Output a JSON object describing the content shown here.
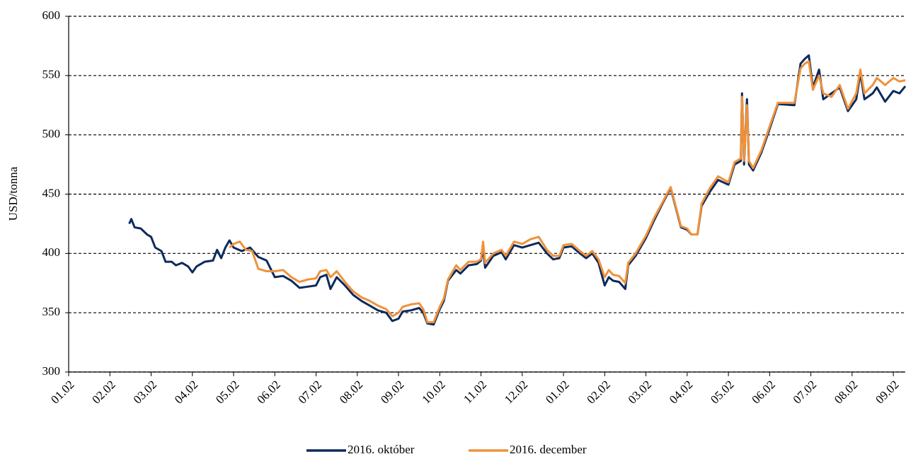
{
  "chart_data": {
    "type": "line",
    "y_label": "USD/tonna",
    "xlim": [
      0,
      20.29
    ],
    "xticks": [
      {
        "value": 0,
        "label": "01.02"
      },
      {
        "value": 1,
        "label": "02.02"
      },
      {
        "value": 2,
        "label": "03.02"
      },
      {
        "value": 3,
        "label": "04.02"
      },
      {
        "value": 4,
        "label": "05.02"
      },
      {
        "value": 5,
        "label": "06.02"
      },
      {
        "value": 6,
        "label": "07.02"
      },
      {
        "value": 7,
        "label": "08.02"
      },
      {
        "value": 8,
        "label": "09.02"
      },
      {
        "value": 9,
        "label": "10.02"
      },
      {
        "value": 10,
        "label": "11.02"
      },
      {
        "value": 11,
        "label": "12.02"
      },
      {
        "value": 12,
        "label": "01.02"
      },
      {
        "value": 13,
        "label": "02.02"
      },
      {
        "value": 14,
        "label": "03.02"
      },
      {
        "value": 15,
        "label": "04.02"
      },
      {
        "value": 16,
        "label": "05.02"
      },
      {
        "value": 17,
        "label": "06.02"
      },
      {
        "value": 18,
        "label": "07.02"
      },
      {
        "value": 19,
        "label": "08.02"
      },
      {
        "value": 20,
        "label": "09.02"
      }
    ],
    "ylim": [
      300,
      600
    ],
    "yticks": [
      300,
      350,
      400,
      450,
      500,
      550,
      600
    ],
    "grid": true,
    "legend": "bottom",
    "series": [
      {
        "name": "2016. október",
        "color": "#0d2a5c",
        "x": [
          1.47,
          1.52,
          1.6,
          1.75,
          1.9,
          2.0,
          2.1,
          2.25,
          2.35,
          2.5,
          2.6,
          2.75,
          2.9,
          3.0,
          3.1,
          3.3,
          3.5,
          3.6,
          3.7,
          3.8,
          3.9,
          4.0,
          4.2,
          4.4,
          4.6,
          4.8,
          5.0,
          5.2,
          5.4,
          5.6,
          5.8,
          6.0,
          6.1,
          6.25,
          6.35,
          6.5,
          6.7,
          6.9,
          7.1,
          7.3,
          7.5,
          7.7,
          7.85,
          8.0,
          8.1,
          8.3,
          8.5,
          8.6,
          8.7,
          8.85,
          9.0,
          9.1,
          9.2,
          9.4,
          9.5,
          9.7,
          9.9,
          10.0,
          10.05,
          10.1,
          10.3,
          10.5,
          10.6,
          10.8,
          11.0,
          11.2,
          11.4,
          11.6,
          11.75,
          11.9,
          12.0,
          12.2,
          12.4,
          12.55,
          12.7,
          12.85,
          13.0,
          13.1,
          13.2,
          13.35,
          13.5,
          13.57,
          13.75,
          14.0,
          14.2,
          14.4,
          14.6,
          14.85,
          15.0,
          15.1,
          15.25,
          15.35,
          15.55,
          15.75,
          16.0,
          16.15,
          16.3,
          16.33,
          16.38,
          16.45,
          16.5,
          16.6,
          16.8,
          17.0,
          17.2,
          17.6,
          17.75,
          17.85,
          17.95,
          18.05,
          18.2,
          18.3,
          18.5,
          18.7,
          18.9,
          19.1,
          19.2,
          19.3,
          19.5,
          19.6,
          19.8,
          20.0,
          20.15,
          20.29
        ],
        "values": [
          425,
          429,
          422,
          421,
          416,
          414,
          405,
          402,
          393,
          393,
          390,
          392,
          389,
          384,
          389,
          393,
          394,
          403,
          396,
          405,
          411,
          405,
          402,
          405,
          397,
          394,
          380,
          381,
          377,
          371,
          372,
          373,
          380,
          382,
          370,
          380,
          373,
          365,
          360,
          356,
          352,
          350,
          343,
          345,
          351,
          352,
          354,
          350,
          341,
          340,
          353,
          360,
          377,
          386,
          383,
          390,
          391,
          394,
          404,
          388,
          398,
          401,
          395,
          407,
          405,
          407,
          409,
          400,
          395,
          396,
          405,
          406,
          400,
          396,
          400,
          392,
          373,
          380,
          377,
          376,
          370,
          390,
          398,
          413,
          428,
          442,
          455,
          422,
          420,
          416,
          416,
          440,
          452,
          462,
          458,
          475,
          478,
          535,
          475,
          530,
          475,
          470,
          485,
          505,
          526,
          525,
          560,
          564,
          567,
          540,
          555,
          530,
          535,
          540,
          520,
          530,
          552,
          530,
          535,
          540,
          528,
          537,
          535,
          541
        ]
      },
      {
        "name": "2016. december",
        "color": "#f0913a",
        "x": [
          3.9,
          4.0,
          4.15,
          4.3,
          4.45,
          4.6,
          4.8,
          5.0,
          5.2,
          5.4,
          5.6,
          5.8,
          6.0,
          6.1,
          6.25,
          6.35,
          6.5,
          6.7,
          6.9,
          7.1,
          7.3,
          7.5,
          7.7,
          7.85,
          8.0,
          8.1,
          8.3,
          8.5,
          8.6,
          8.7,
          8.85,
          9.0,
          9.1,
          9.2,
          9.4,
          9.5,
          9.7,
          9.9,
          10.0,
          10.05,
          10.1,
          10.3,
          10.5,
          10.6,
          10.8,
          11.0,
          11.2,
          11.4,
          11.6,
          11.75,
          11.9,
          12.0,
          12.2,
          12.4,
          12.55,
          12.7,
          12.85,
          13.0,
          13.1,
          13.2,
          13.35,
          13.5,
          13.57,
          13.75,
          14.0,
          14.2,
          14.4,
          14.6,
          14.85,
          15.0,
          15.1,
          15.25,
          15.35,
          15.55,
          15.75,
          16.0,
          16.15,
          16.3,
          16.33,
          16.38,
          16.45,
          16.5,
          16.6,
          16.8,
          17.0,
          17.2,
          17.6,
          17.75,
          17.85,
          17.95,
          18.05,
          18.2,
          18.3,
          18.5,
          18.7,
          18.9,
          19.1,
          19.2,
          19.3,
          19.5,
          19.6,
          19.8,
          20.0,
          20.15,
          20.29
        ],
        "values": [
          405,
          408,
          410,
          403,
          402,
          387,
          385,
          385,
          386,
          380,
          376,
          378,
          379,
          385,
          386,
          380,
          385,
          376,
          368,
          363,
          360,
          356,
          353,
          347,
          350,
          355,
          357,
          358,
          353,
          342,
          342,
          355,
          362,
          378,
          390,
          386,
          393,
          393,
          395,
          410,
          392,
          400,
          403,
          398,
          410,
          408,
          412,
          414,
          403,
          398,
          398,
          407,
          408,
          402,
          398,
          402,
          395,
          380,
          386,
          382,
          381,
          375,
          392,
          400,
          415,
          430,
          443,
          456,
          423,
          421,
          416,
          416,
          442,
          455,
          465,
          460,
          477,
          480,
          532,
          478,
          525,
          478,
          472,
          487,
          507,
          527,
          527,
          556,
          560,
          562,
          538,
          550,
          535,
          532,
          542,
          522,
          535,
          555,
          535,
          542,
          548,
          542,
          548,
          545,
          546
        ]
      }
    ]
  }
}
